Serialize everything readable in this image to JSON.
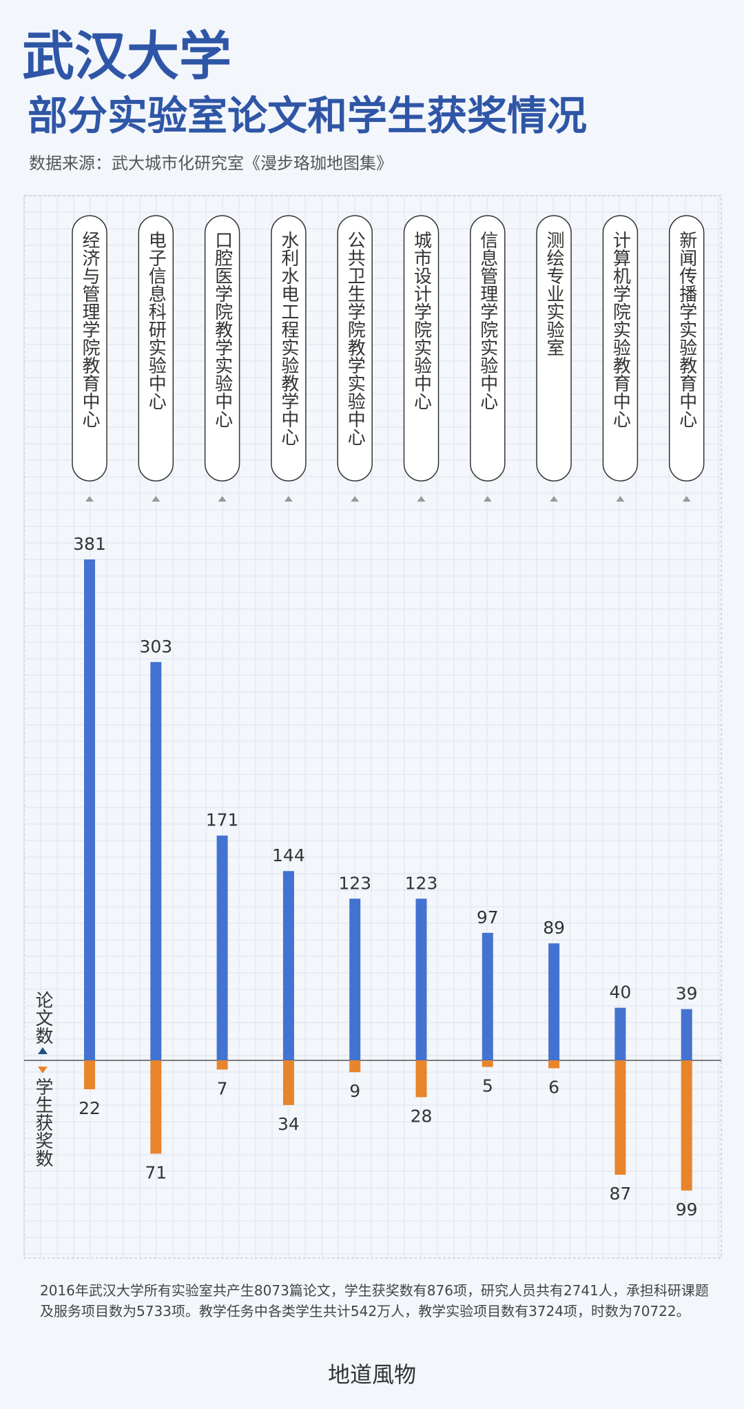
{
  "title": "武汉大学",
  "subtitle": "部分实验室论文和学生获奖情况",
  "source": "数据来源：武大城市化研究室《漫步珞珈地图集》",
  "chart_data": {
    "type": "diverging-bar",
    "categories": [
      "经济与管理学院教育中心",
      "电子信息科研实验中心",
      "口腔医学院教学实验中心",
      "水利水电工程实验教学中心",
      "公共卫生学院教学实验中心",
      "城市设计学院实验中心",
      "信息管理学院实验中心",
      "测绘专业实验室",
      "计算机学院实验教育中心",
      "新闻传播学实验教育中心"
    ],
    "series": [
      {
        "name": "论文数",
        "color": "#4472d0",
        "values": [
          381,
          303,
          171,
          144,
          123,
          123,
          97,
          89,
          40,
          39
        ]
      },
      {
        "name": "学生获奖数",
        "color": "#e8842c",
        "values": [
          22,
          71,
          7,
          34,
          9,
          28,
          5,
          6,
          87,
          99
        ]
      }
    ]
  },
  "note": "2016年武汉大学所有实验室共产生8073篇论文，学生获奖数有876项，研究人员共有2741人，承担科研课题及服务项目数为5733项。教学任务中各类学生共计542万人，教学实验项目数有3724项，时数为70722。",
  "brand": "地道風物"
}
